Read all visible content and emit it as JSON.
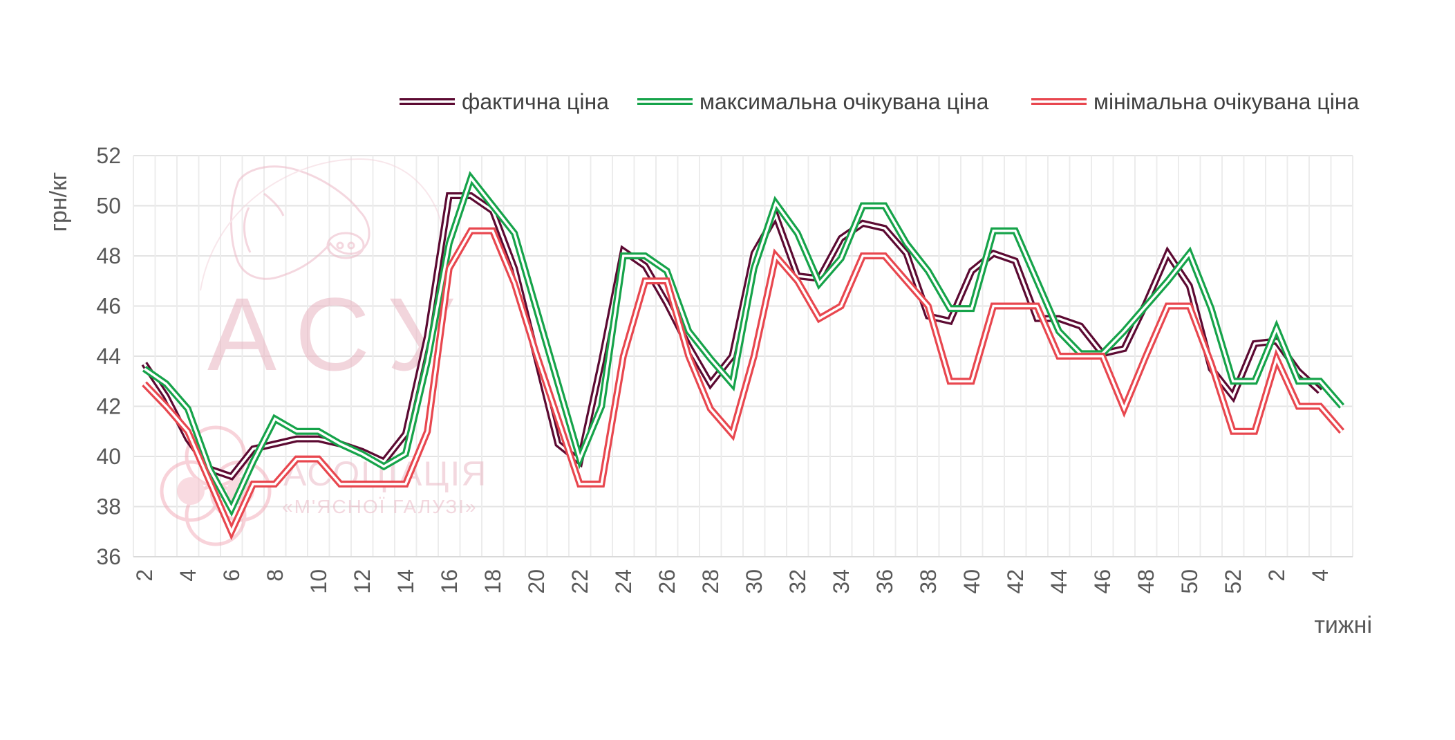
{
  "chart_data": {
    "type": "line",
    "title": "",
    "xlabel": "тижні",
    "ylabel": "грн/кг",
    "ylim": [
      36,
      52
    ],
    "y_ticks": [
      36,
      38,
      40,
      42,
      44,
      46,
      48,
      50,
      52
    ],
    "grid": true,
    "legend_position": "top-right",
    "categories": [
      "2",
      "3",
      "4",
      "5",
      "6",
      "7",
      "8",
      "9",
      "10",
      "11",
      "12",
      "13",
      "14",
      "15",
      "16",
      "17",
      "18",
      "19",
      "20",
      "21",
      "22",
      "23",
      "24",
      "25",
      "26",
      "27",
      "28",
      "29",
      "30",
      "31",
      "32",
      "33",
      "34",
      "35",
      "36",
      "37",
      "38",
      "39",
      "40",
      "41",
      "42",
      "43",
      "44",
      "45",
      "46",
      "47",
      "48",
      "49",
      "50",
      "51",
      "52",
      "1",
      "2",
      "3",
      "4",
      "5"
    ],
    "series": [
      {
        "name": "фактична ціна",
        "color": "#5c0a32",
        "values": [
          43.7,
          42.4,
          40.7,
          39.5,
          39.2,
          40.3,
          40.5,
          40.7,
          40.7,
          40.5,
          40.2,
          39.8,
          40.9,
          44.8,
          50.4,
          50.4,
          49.8,
          47.5,
          44.0,
          40.5,
          39.8,
          43.8,
          48.2,
          47.6,
          46.1,
          44.4,
          42.9,
          44.0,
          48.1,
          49.6,
          47.2,
          47.1,
          48.7,
          49.3,
          49.1,
          48.1,
          45.6,
          45.4,
          47.4,
          48.1,
          47.8,
          45.5,
          45.5,
          45.2,
          44.1,
          44.3,
          46.1,
          48.1,
          46.8,
          43.5,
          42.4,
          44.5,
          44.6,
          43.4,
          42.6,
          null
        ],
        "label_values": [
          {
            "x": 0,
            "text": ""
          }
        ]
      },
      {
        "name": "максимальна очікувана ціна",
        "color": "#16a34a",
        "values": [
          43.5,
          42.9,
          41.9,
          39.5,
          37.9,
          39.8,
          41.5,
          41.0,
          41.0,
          40.5,
          40.1,
          39.6,
          40.1,
          43.8,
          48.5,
          51.1,
          50.0,
          48.9,
          45.9,
          42.9,
          39.9,
          42.0,
          48.0,
          48.0,
          47.4,
          45.0,
          43.9,
          42.9,
          47.5,
          50.1,
          48.9,
          46.9,
          47.9,
          50.0,
          50.0,
          48.5,
          47.4,
          45.9,
          45.9,
          49.0,
          49.0,
          47.0,
          45.0,
          44.1,
          44.1,
          45.0,
          46.0,
          47.0,
          48.1,
          45.9,
          43.0,
          43.0,
          45.1,
          43.0,
          43.0,
          42.0
        ],
        "label_values": [
          {
            "x": 0,
            "text": ""
          }
        ]
      },
      {
        "name": "мінімальна очікувана ціна",
        "color": "#e8474f",
        "values": [
          42.9,
          42.0,
          41.0,
          39.0,
          37.0,
          38.9,
          38.9,
          39.9,
          39.9,
          38.9,
          38.9,
          38.9,
          38.9,
          41.0,
          47.5,
          49.0,
          49.0,
          46.9,
          44.1,
          41.5,
          38.9,
          38.9,
          44.0,
          47.0,
          47.0,
          44.0,
          41.9,
          40.9,
          44.0,
          48.0,
          47.0,
          45.5,
          46.0,
          48.0,
          48.0,
          47.0,
          46.0,
          43.0,
          43.0,
          46.0,
          46.0,
          46.0,
          44.0,
          44.0,
          44.0,
          41.9,
          44.0,
          46.0,
          46.0,
          43.7,
          41.0,
          41.0,
          43.9,
          42.0,
          42.0,
          41.0
        ],
        "label_values": [
          {
            "x": 0,
            "text": ""
          }
        ]
      }
    ]
  }
}
